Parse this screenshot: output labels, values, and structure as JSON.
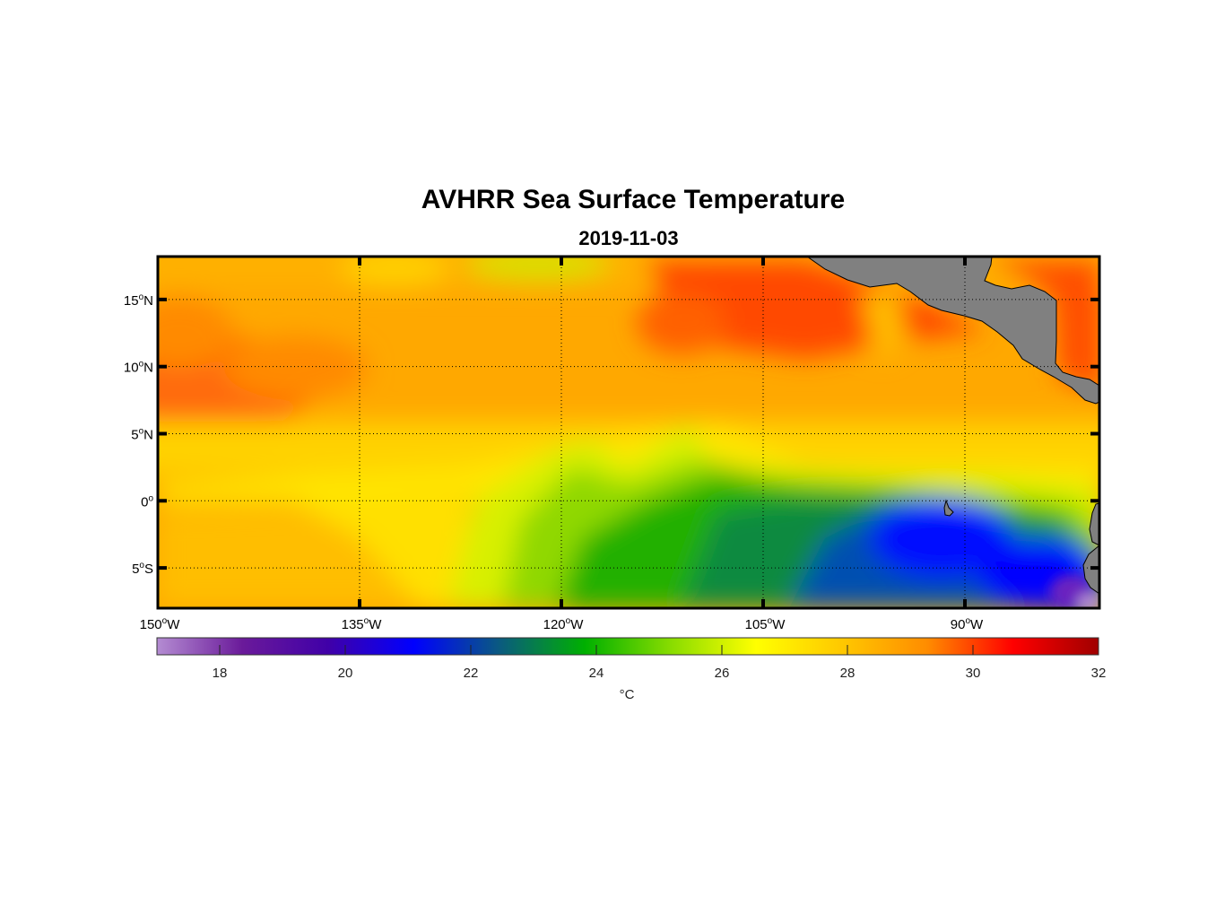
{
  "title": "AVHRR Sea Surface Temperature",
  "subtitle": "2019-11-03",
  "map": {
    "lon_range": [
      -150,
      -80
    ],
    "lat_range": [
      -8,
      18.2
    ],
    "lon_ticks": [
      {
        "value": -150,
        "deg": "150",
        "hemi": "W"
      },
      {
        "value": -135,
        "deg": "135",
        "hemi": "W"
      },
      {
        "value": -120,
        "deg": "120",
        "hemi": "W"
      },
      {
        "value": -105,
        "deg": "105",
        "hemi": "W"
      },
      {
        "value": -90,
        "deg": "90",
        "hemi": "W"
      }
    ],
    "lat_ticks": [
      {
        "value": 15,
        "deg": "15",
        "hemi": "N"
      },
      {
        "value": 10,
        "deg": "10",
        "hemi": "N"
      },
      {
        "value": 5,
        "deg": "5",
        "hemi": "N"
      },
      {
        "value": 0,
        "deg": "0",
        "hemi": ""
      },
      {
        "value": -5,
        "deg": "5",
        "hemi": "S"
      }
    ],
    "land_color": "#808080"
  },
  "colorbar": {
    "range": [
      17,
      32
    ],
    "ticks": [
      "18",
      "20",
      "22",
      "24",
      "26",
      "28",
      "30",
      "32"
    ],
    "unit": "°C",
    "colors": [
      "#b48cd2",
      "#6a1a9a",
      "#4000a8",
      "#0000ff",
      "#0a5a80",
      "#00b000",
      "#88dc00",
      "#ffff00",
      "#ffc800",
      "#ff8c00",
      "#ff0000",
      "#a00000"
    ]
  }
}
